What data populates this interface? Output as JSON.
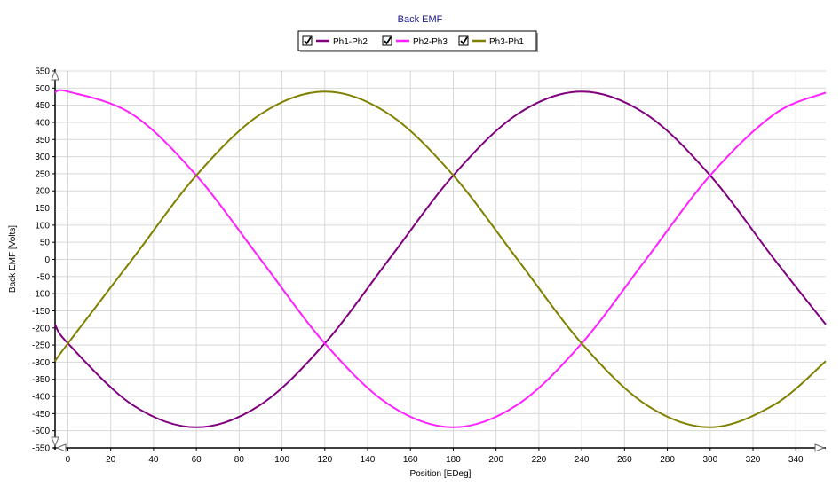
{
  "chart_data": {
    "type": "line",
    "title": "Back EMF",
    "xlabel": "Position [EDeg]",
    "ylabel": "Back EMF [Volts]",
    "xlim": [
      -6,
      354
    ],
    "ylim": [
      -550,
      550
    ],
    "xticks": [
      0,
      20,
      40,
      60,
      80,
      100,
      120,
      140,
      160,
      180,
      200,
      220,
      240,
      260,
      280,
      300,
      320,
      340
    ],
    "yticks": [
      -550,
      -500,
      -450,
      -400,
      -350,
      -300,
      -250,
      -200,
      -150,
      -100,
      -50,
      0,
      50,
      100,
      150,
      200,
      250,
      300,
      350,
      400,
      450,
      500,
      550
    ],
    "grid": true,
    "legend_position": "top-center",
    "x": [
      -6,
      0,
      30,
      60,
      90,
      120,
      150,
      180,
      210,
      240,
      270,
      300,
      330,
      354
    ],
    "series": [
      {
        "name": "Ph1-Ph2",
        "color": "#800080",
        "checked": true,
        "values": [
          -190,
          -245,
          -424,
          -490,
          -424,
          -245,
          0,
          245,
          424,
          490,
          424,
          245,
          0,
          -190
        ]
      },
      {
        "name": "Ph2-Ph3",
        "color": "#ff20ff",
        "checked": true,
        "values": [
          487,
          490,
          424,
          245,
          0,
          -245,
          -424,
          -490,
          -424,
          -245,
          0,
          245,
          424,
          487
        ]
      },
      {
        "name": "Ph3-Ph1",
        "color": "#808000",
        "checked": true,
        "values": [
          -297,
          -245,
          0,
          245,
          424,
          490,
          424,
          245,
          0,
          -245,
          -424,
          -490,
          -424,
          -297
        ]
      }
    ]
  }
}
